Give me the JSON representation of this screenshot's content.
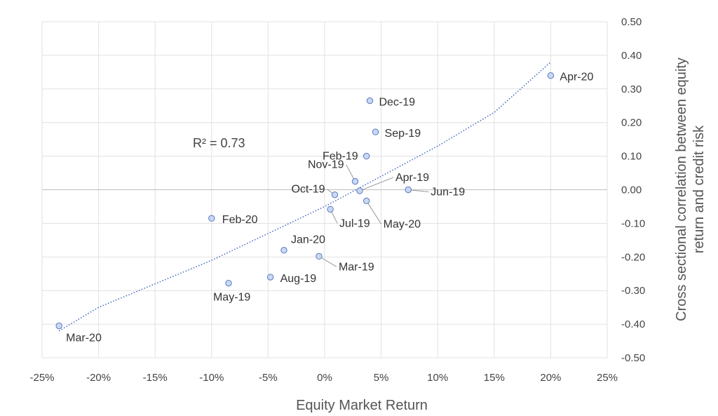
{
  "chart_data": {
    "type": "scatter",
    "xlabel": "Equity Market Return",
    "ylabel": "Cross sectional correlation between equity return and credit risk",
    "ylabel_lines": [
      "Cross sectional correlation between equity",
      "return and credit risk"
    ],
    "xlim": [
      -0.25,
      0.25
    ],
    "ylim": [
      -0.5,
      0.5
    ],
    "x_ticks": [
      -0.25,
      -0.2,
      -0.15,
      -0.1,
      -0.05,
      0,
      0.05,
      0.1,
      0.15,
      0.2,
      0.25
    ],
    "x_tick_labels": [
      "-25%",
      "-20%",
      "-15%",
      "-10%",
      "-5%",
      "0%",
      "5%",
      "10%",
      "15%",
      "20%",
      "25%"
    ],
    "y_ticks": [
      0.5,
      0.4,
      0.3,
      0.2,
      0.1,
      0.0,
      -0.1,
      -0.2,
      -0.3,
      -0.4,
      -0.5
    ],
    "y_tick_labels": [
      "0.50",
      "0.40",
      "0.30",
      "0.20",
      "0.10",
      "0.00",
      "-0.10",
      "-0.20",
      "-0.30",
      "-0.40",
      "-0.50"
    ],
    "grid": true,
    "y_axis_side": "right",
    "annotation": "R² = 0.73",
    "marker_color": "#c9d8f3",
    "marker_edge": "#5b78c2",
    "trend_color": "#4a6fc2",
    "trendline_style": "dotted",
    "trendline": [
      [
        -0.235,
        -0.42
      ],
      [
        -0.2,
        -0.35
      ],
      [
        -0.15,
        -0.28
      ],
      [
        -0.1,
        -0.21
      ],
      [
        -0.05,
        -0.13
      ],
      [
        0,
        -0.05
      ],
      [
        0.05,
        0.04
      ],
      [
        0.1,
        0.13
      ],
      [
        0.15,
        0.23
      ],
      [
        0.2,
        0.38
      ]
    ],
    "points": [
      {
        "label": "Apr-20",
        "x": 0.2,
        "y": 0.34
      },
      {
        "label": "Dec-19",
        "x": 0.04,
        "y": 0.265
      },
      {
        "label": "Sep-19",
        "x": 0.045,
        "y": 0.172
      },
      {
        "label": "Feb-19",
        "x": 0.037,
        "y": 0.1
      },
      {
        "label": "Nov-19",
        "x": 0.027,
        "y": 0.025
      },
      {
        "label": "Apr-19",
        "x": 0.031,
        "y": -0.003
      },
      {
        "label": "Oct-19",
        "x": 0.009,
        "y": -0.015
      },
      {
        "label": "Jun-19",
        "x": 0.074,
        "y": 0.0
      },
      {
        "label": "May-20",
        "x": 0.037,
        "y": -0.033
      },
      {
        "label": "Jul-19",
        "x": 0.005,
        "y": -0.058
      },
      {
        "label": "Feb-20",
        "x": -0.1,
        "y": -0.085
      },
      {
        "label": "Jan-20",
        "x": -0.036,
        "y": -0.18
      },
      {
        "label": "Mar-19",
        "x": -0.005,
        "y": -0.198
      },
      {
        "label": "Aug-19",
        "x": -0.048,
        "y": -0.26
      },
      {
        "label": "May-19",
        "x": -0.085,
        "y": -0.278
      },
      {
        "label": "Mar-20",
        "x": -0.235,
        "y": -0.405
      }
    ]
  }
}
